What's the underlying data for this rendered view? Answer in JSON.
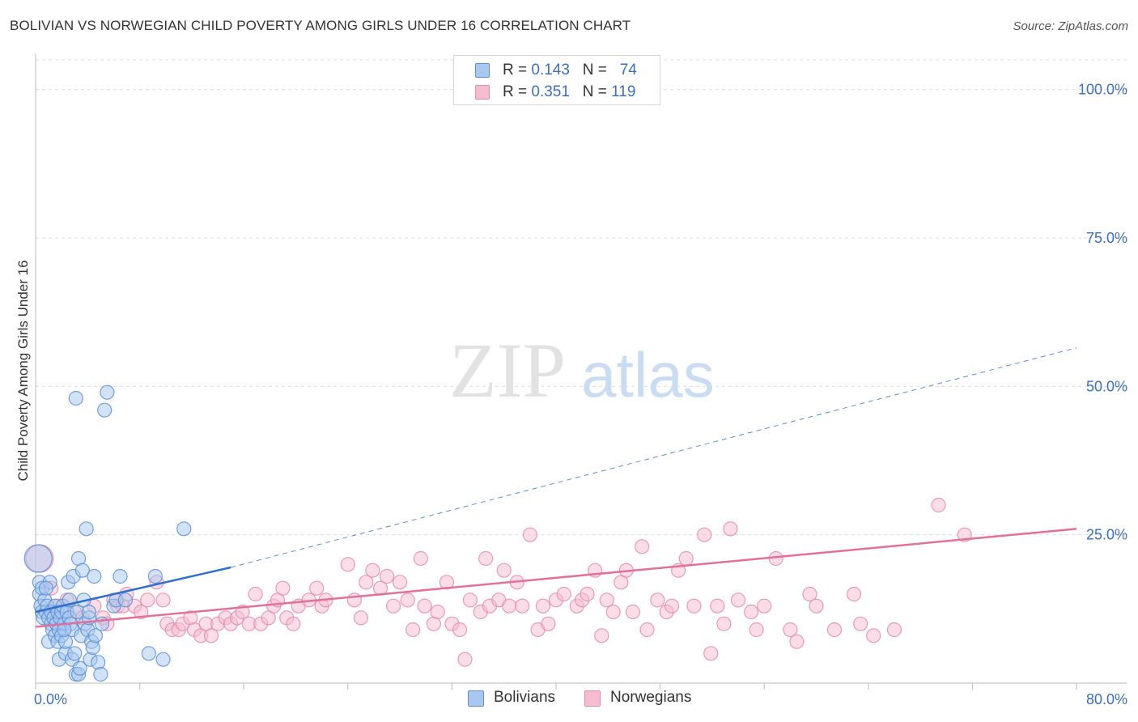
{
  "header": {
    "title": "BOLIVIAN VS NORWEGIAN CHILD POVERTY AMONG GIRLS UNDER 16 CORRELATION CHART",
    "source": "Source: ZipAtlas.com"
  },
  "watermark": {
    "zip": "ZIP",
    "atlas": "atlas"
  },
  "legend": {
    "rows": [
      {
        "r_label": "R = ",
        "r_value": "0.143",
        "n_label": "N = ",
        "n_value": "74"
      },
      {
        "r_label": "R = ",
        "r_value": "0.351",
        "n_label": "N = ",
        "n_value": "119"
      }
    ]
  },
  "bottom_legend": {
    "bolivians": "Bolivians",
    "norwegians": "Norwegians"
  },
  "colors": {
    "bolivian_fill": "#a8c8f0",
    "bolivian_stroke": "#5b8fd6",
    "bolivian_line": "#2f6fcf",
    "norwegian_fill": "#f8bcd0",
    "norwegian_stroke": "#e58aa8",
    "norwegian_line": "#e2709a",
    "tick_label": "#3b6fc4",
    "grid": "#dddddd"
  },
  "chart_data": {
    "type": "scatter",
    "title": "BOLIVIAN VS NORWEGIAN CHILD POVERTY AMONG GIRLS UNDER 16 CORRELATION CHART",
    "xlabel": "",
    "ylabel": "Child Poverty Among Girls Under 16",
    "xlim": [
      0,
      80
    ],
    "ylim": [
      0,
      105
    ],
    "x_tick_labels": [
      {
        "value": 0,
        "label": "0.0%"
      },
      {
        "value": 80,
        "label": "80.0%"
      }
    ],
    "y_tick_labels": [
      {
        "value": 25,
        "label": "25.0%"
      },
      {
        "value": 50,
        "label": "50.0%"
      },
      {
        "value": 75,
        "label": "75.0%"
      },
      {
        "value": 100,
        "label": "100.0%"
      }
    ],
    "grid": true,
    "legend_position": "top-center",
    "series": [
      {
        "name": "Bolivians",
        "points": [
          [
            0.2,
            21
          ],
          [
            0.3,
            17
          ],
          [
            0.3,
            15
          ],
          [
            0.4,
            13
          ],
          [
            0.5,
            12
          ],
          [
            0.5,
            16
          ],
          [
            0.6,
            11
          ],
          [
            0.7,
            14
          ],
          [
            0.8,
            12
          ],
          [
            0.9,
            13
          ],
          [
            1.0,
            11
          ],
          [
            1.0,
            7
          ],
          [
            1.1,
            17
          ],
          [
            1.2,
            10
          ],
          [
            1.2,
            12
          ],
          [
            1.3,
            9
          ],
          [
            1.4,
            11
          ],
          [
            1.5,
            13
          ],
          [
            1.5,
            8
          ],
          [
            1.6,
            10
          ],
          [
            1.7,
            12
          ],
          [
            1.7,
            7
          ],
          [
            1.8,
            9
          ],
          [
            1.8,
            4
          ],
          [
            1.9,
            11
          ],
          [
            2.0,
            12
          ],
          [
            2.0,
            8
          ],
          [
            2.1,
            13
          ],
          [
            2.2,
            10
          ],
          [
            2.3,
            5
          ],
          [
            2.3,
            7
          ],
          [
            2.4,
            12
          ],
          [
            2.5,
            17
          ],
          [
            2.6,
            14
          ],
          [
            2.6,
            11
          ],
          [
            2.7,
            10
          ],
          [
            2.8,
            4
          ],
          [
            2.8,
            9
          ],
          [
            2.9,
            18
          ],
          [
            3.0,
            5
          ],
          [
            3.1,
            1.5
          ],
          [
            3.2,
            12
          ],
          [
            3.3,
            21
          ],
          [
            3.3,
            1.5
          ],
          [
            3.4,
            2.5
          ],
          [
            3.5,
            8
          ],
          [
            3.6,
            19
          ],
          [
            3.7,
            14
          ],
          [
            3.8,
            10
          ],
          [
            3.9,
            26
          ],
          [
            4.0,
            9
          ],
          [
            4.1,
            11
          ],
          [
            4.1,
            12
          ],
          [
            4.2,
            4
          ],
          [
            4.3,
            7
          ],
          [
            4.4,
            6
          ],
          [
            4.5,
            18
          ],
          [
            4.6,
            8
          ],
          [
            4.8,
            3.5
          ],
          [
            3.1,
            48
          ],
          [
            5.0,
            1.5
          ],
          [
            5.1,
            10
          ],
          [
            5.3,
            46
          ],
          [
            5.5,
            49
          ],
          [
            6.0,
            13
          ],
          [
            6.2,
            14
          ],
          [
            6.5,
            18
          ],
          [
            6.9,
            14
          ],
          [
            8.7,
            5
          ],
          [
            9.2,
            18
          ],
          [
            9.8,
            4
          ],
          [
            11.4,
            26
          ],
          [
            0.8,
            16
          ],
          [
            2.2,
            9
          ]
        ]
      },
      {
        "name": "Norwegians",
        "points": [
          [
            0.3,
            21
          ],
          [
            1.2,
            16
          ],
          [
            1.8,
            13
          ],
          [
            2.4,
            14
          ],
          [
            3.0,
            12
          ],
          [
            3.6,
            11
          ],
          [
            4.5,
            13
          ],
          [
            5.2,
            11
          ],
          [
            5.5,
            10
          ],
          [
            6.0,
            14
          ],
          [
            6.3,
            13
          ],
          [
            6.7,
            13
          ],
          [
            7.0,
            15
          ],
          [
            7.6,
            13
          ],
          [
            8.1,
            12
          ],
          [
            8.6,
            14
          ],
          [
            9.3,
            17
          ],
          [
            9.8,
            14
          ],
          [
            10.1,
            10
          ],
          [
            10.5,
            9
          ],
          [
            11.0,
            9
          ],
          [
            11.3,
            10
          ],
          [
            11.9,
            11
          ],
          [
            12.2,
            9
          ],
          [
            12.7,
            8
          ],
          [
            13.1,
            10
          ],
          [
            13.5,
            8
          ],
          [
            14.0,
            10
          ],
          [
            14.6,
            11
          ],
          [
            15.0,
            10
          ],
          [
            15.5,
            11
          ],
          [
            15.9,
            12
          ],
          [
            16.4,
            10
          ],
          [
            16.9,
            15
          ],
          [
            17.3,
            10
          ],
          [
            17.9,
            11
          ],
          [
            18.3,
            13
          ],
          [
            18.6,
            14
          ],
          [
            19.0,
            16
          ],
          [
            19.3,
            11
          ],
          [
            19.8,
            10
          ],
          [
            20.2,
            13
          ],
          [
            21.0,
            14
          ],
          [
            21.6,
            16
          ],
          [
            22.0,
            13
          ],
          [
            22.3,
            14
          ],
          [
            24.0,
            20
          ],
          [
            24.5,
            14
          ],
          [
            25.0,
            11
          ],
          [
            25.4,
            17
          ],
          [
            25.9,
            19
          ],
          [
            26.5,
            16
          ],
          [
            27.0,
            18
          ],
          [
            27.5,
            13
          ],
          [
            28.0,
            17
          ],
          [
            28.6,
            14
          ],
          [
            29.0,
            9
          ],
          [
            29.6,
            21
          ],
          [
            29.9,
            13
          ],
          [
            30.6,
            10
          ],
          [
            30.9,
            12
          ],
          [
            31.6,
            17
          ],
          [
            32.0,
            10
          ],
          [
            32.6,
            9
          ],
          [
            33.0,
            4
          ],
          [
            33.4,
            14
          ],
          [
            34.2,
            12
          ],
          [
            34.6,
            21
          ],
          [
            34.9,
            13
          ],
          [
            35.6,
            14
          ],
          [
            36.0,
            19
          ],
          [
            36.4,
            13
          ],
          [
            37.0,
            17
          ],
          [
            37.4,
            13
          ],
          [
            38.0,
            25
          ],
          [
            38.6,
            9
          ],
          [
            39.0,
            13
          ],
          [
            39.4,
            10
          ],
          [
            40.0,
            14
          ],
          [
            40.6,
            15
          ],
          [
            41.6,
            13
          ],
          [
            42.0,
            14
          ],
          [
            42.4,
            15
          ],
          [
            43.0,
            19
          ],
          [
            43.5,
            8
          ],
          [
            43.9,
            14
          ],
          [
            44.4,
            12
          ],
          [
            45.0,
            17
          ],
          [
            45.4,
            19
          ],
          [
            45.9,
            12
          ],
          [
            46.6,
            23
          ],
          [
            47.0,
            9
          ],
          [
            47.8,
            14
          ],
          [
            48.5,
            12
          ],
          [
            48.9,
            13
          ],
          [
            49.4,
            19
          ],
          [
            50.0,
            21
          ],
          [
            50.6,
            13
          ],
          [
            51.4,
            25
          ],
          [
            51.9,
            5
          ],
          [
            52.4,
            13
          ],
          [
            52.9,
            10
          ],
          [
            53.4,
            26
          ],
          [
            54.0,
            14
          ],
          [
            55.0,
            12
          ],
          [
            55.4,
            9
          ],
          [
            56.0,
            13
          ],
          [
            56.9,
            21
          ],
          [
            58.0,
            9
          ],
          [
            58.5,
            7
          ],
          [
            59.5,
            15
          ],
          [
            60.0,
            13
          ],
          [
            61.4,
            9
          ],
          [
            62.9,
            15
          ],
          [
            63.4,
            10
          ],
          [
            64.4,
            8
          ],
          [
            66.0,
            9
          ],
          [
            69.4,
            30
          ],
          [
            71.4,
            25
          ]
        ]
      }
    ],
    "trend_lines": [
      {
        "series": "Bolivians",
        "solid": [
          [
            0,
            12
          ],
          [
            15,
            19.5
          ]
        ],
        "dashed": [
          [
            15,
            19.5
          ],
          [
            80,
            56.5
          ]
        ]
      },
      {
        "series": "Norwegians",
        "solid": [
          [
            0,
            9.5
          ],
          [
            80,
            26
          ]
        ]
      }
    ]
  }
}
